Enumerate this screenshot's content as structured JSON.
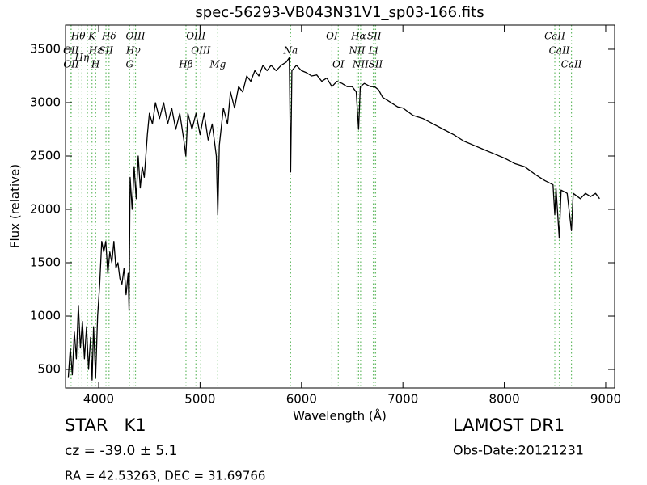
{
  "chart_data": {
    "type": "line",
    "title": "spec-56293-VB043N31V1_sp03-166.fits",
    "xlabel": "Wavelength (Å)",
    "ylabel": "Flux (relative)",
    "color": "#000000",
    "ref_color": "#66bb66",
    "xlim": [
      3673,
      9088
    ],
    "ylim": [
      326,
      3727
    ],
    "xticks": [
      4000,
      5000,
      6000,
      7000,
      8000,
      9000
    ],
    "yticks": [
      500,
      1000,
      1500,
      2000,
      2500,
      3000,
      3500
    ],
    "x": [
      3700,
      3720,
      3740,
      3760,
      3780,
      3800,
      3820,
      3840,
      3860,
      3880,
      3900,
      3920,
      3935,
      3950,
      3970,
      3990,
      4010,
      4030,
      4050,
      4070,
      4090,
      4110,
      4130,
      4150,
      4170,
      4190,
      4210,
      4230,
      4250,
      4270,
      4290,
      4300,
      4310,
      4330,
      4350,
      4370,
      4390,
      4410,
      4430,
      4450,
      4480,
      4500,
      4530,
      4560,
      4600,
      4640,
      4680,
      4720,
      4760,
      4800,
      4840,
      4860,
      4880,
      4920,
      4960,
      5000,
      5040,
      5080,
      5120,
      5160,
      5175,
      5190,
      5230,
      5270,
      5300,
      5340,
      5380,
      5420,
      5460,
      5500,
      5540,
      5580,
      5620,
      5660,
      5700,
      5750,
      5800,
      5850,
      5880,
      5893,
      5905,
      5950,
      6000,
      6050,
      6100,
      6150,
      6200,
      6250,
      6300,
      6350,
      6400,
      6450,
      6500,
      6540,
      6563,
      6580,
      6620,
      6680,
      6720,
      6760,
      6800,
      6850,
      6900,
      6950,
      7000,
      7100,
      7200,
      7300,
      7400,
      7500,
      7600,
      7700,
      7800,
      7900,
      8000,
      8100,
      8200,
      8300,
      8400,
      8480,
      8498,
      8510,
      8542,
      8560,
      8620,
      8662,
      8680,
      8750,
      8800,
      8850,
      8900,
      8940
    ],
    "values": [
      420,
      700,
      450,
      850,
      600,
      1100,
      700,
      950,
      600,
      900,
      500,
      800,
      400,
      900,
      420,
      1000,
      1300,
      1700,
      1600,
      1700,
      1400,
      1600,
      1500,
      1700,
      1450,
      1500,
      1350,
      1300,
      1450,
      1200,
      1400,
      1050,
      2300,
      2000,
      2400,
      2100,
      2500,
      2200,
      2400,
      2300,
      2700,
      2900,
      2800,
      3000,
      2850,
      3000,
      2800,
      2950,
      2750,
      2900,
      2650,
      2500,
      2900,
      2750,
      2900,
      2700,
      2900,
      2650,
      2800,
      2500,
      1950,
      2600,
      2950,
      2800,
      3100,
      2950,
      3150,
      3100,
      3250,
      3200,
      3300,
      3250,
      3350,
      3300,
      3350,
      3300,
      3350,
      3380,
      3420,
      2350,
      3300,
      3350,
      3300,
      3280,
      3250,
      3260,
      3200,
      3230,
      3150,
      3200,
      3180,
      3150,
      3150,
      3100,
      2750,
      3150,
      3180,
      3150,
      3150,
      3120,
      3050,
      3020,
      2990,
      2960,
      2950,
      2880,
      2850,
      2800,
      2750,
      2700,
      2640,
      2600,
      2560,
      2520,
      2480,
      2430,
      2400,
      2330,
      2270,
      2230,
      1950,
      2200,
      1730,
      2180,
      2150,
      1800,
      2150,
      2100,
      2150,
      2120,
      2150,
      2100
    ],
    "reference_lines": [
      3727,
      3729,
      3798,
      3835,
      3889,
      3934,
      3969,
      3970,
      4072,
      4102,
      4305,
      4340,
      4363,
      4861,
      4959,
      5007,
      5175,
      5893,
      6300,
      6363,
      6548,
      6563,
      6583,
      6708,
      6717,
      6731,
      8498,
      8542,
      8662
    ],
    "annotations": [
      {
        "text": "Hθ",
        "x": 3798,
        "y": 3621
      },
      {
        "text": "K",
        "x": 3934,
        "y": 3621
      },
      {
        "text": "Hδ",
        "x": 4102,
        "y": 3621
      },
      {
        "text": "OIII",
        "x": 4363,
        "y": 3621
      },
      {
        "text": "OIII",
        "x": 4959,
        "y": 3621
      },
      {
        "text": "OI",
        "x": 6300,
        "y": 3621
      },
      {
        "text": "Hα",
        "x": 6563,
        "y": 3621
      },
      {
        "text": "SII",
        "x": 6717,
        "y": 3621
      },
      {
        "text": "CaII",
        "x": 8498,
        "y": 3621
      },
      {
        "text": "OII",
        "x": 3727,
        "y": 3485
      },
      {
        "text": "Hε",
        "x": 3970,
        "y": 3485
      },
      {
        "text": "SII",
        "x": 4072,
        "y": 3485
      },
      {
        "text": "Hγ",
        "x": 4340,
        "y": 3485
      },
      {
        "text": "OIII",
        "x": 5007,
        "y": 3485
      },
      {
        "text": "Na",
        "x": 5893,
        "y": 3485
      },
      {
        "text": "NII",
        "x": 6548,
        "y": 3485
      },
      {
        "text": "Li",
        "x": 6708,
        "y": 3485
      },
      {
        "text": "CaII",
        "x": 8542,
        "y": 3485
      },
      {
        "text": "OII",
        "x": 3729,
        "y": 3356
      },
      {
        "text": "Hη",
        "x": 3835,
        "y": 3420
      },
      {
        "text": "H",
        "x": 3969,
        "y": 3356
      },
      {
        "text": "G",
        "x": 4305,
        "y": 3356
      },
      {
        "text": "Hβ",
        "x": 4861,
        "y": 3356
      },
      {
        "text": "Mg",
        "x": 5175,
        "y": 3356
      },
      {
        "text": "OI",
        "x": 6363,
        "y": 3356
      },
      {
        "text": "NII",
        "x": 6583,
        "y": 3356
      },
      {
        "text": "SII",
        "x": 6731,
        "y": 3356
      },
      {
        "text": "CaII",
        "x": 8662,
        "y": 3356
      }
    ]
  },
  "footer": {
    "object": "STAR   K1",
    "survey": "LAMOST DR1",
    "cz": "cz = -39.0 ± 5.1",
    "date": "Obs-Date:20121231",
    "coords": "RA = 42.53263, DEC = 31.69766"
  }
}
